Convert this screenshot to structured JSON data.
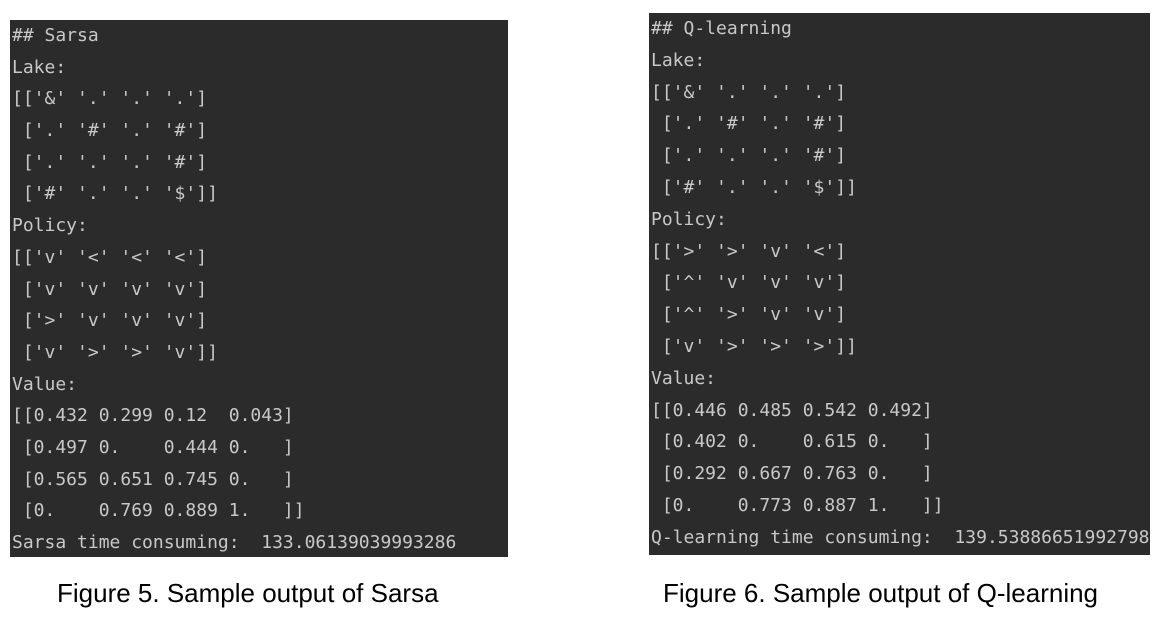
{
  "sarsa": {
    "lines": [
      "## Sarsa",
      "Lake:",
      "[['&' '.' '.' '.']",
      " ['.' '#' '.' '#']",
      " ['.' '.' '.' '#']",
      " ['#' '.' '.' '$']]",
      "Policy:",
      "[['v' '<' '<' '<']",
      " ['v' 'v' 'v' 'v']",
      " ['>' 'v' 'v' 'v']",
      " ['v' '>' '>' 'v']]",
      "Value:",
      "[[0.432 0.299 0.12  0.043]",
      " [0.497 0.    0.444 0.   ]",
      " [0.565 0.651 0.745 0.   ]",
      " [0.    0.769 0.889 1.   ]]",
      "Sarsa time consuming:  133.06139039993286"
    ],
    "caption": "Figure 5. Sample output of Sarsa"
  },
  "qlearning": {
    "lines": [
      "## Q-learning",
      "Lake:",
      "[['&' '.' '.' '.']",
      " ['.' '#' '.' '#']",
      " ['.' '.' '.' '#']",
      " ['#' '.' '.' '$']]",
      "Policy:",
      "[['>' '>' 'v' '<']",
      " ['^' 'v' 'v' 'v']",
      " ['^' '>' 'v' 'v']",
      " ['v' '>' '>' '>']]",
      "Value:",
      "[[0.446 0.485 0.542 0.492]",
      " [0.402 0.    0.615 0.   ]",
      " [0.292 0.667 0.763 0.   ]",
      " [0.    0.773 0.887 1.   ]]",
      "Q-learning time consuming:  139.53886651992798"
    ],
    "caption": "Figure 6. Sample output of Q-learning"
  },
  "colors": {
    "terminal_bg": "#2b2b2b",
    "terminal_text": "#c8c8c8"
  }
}
